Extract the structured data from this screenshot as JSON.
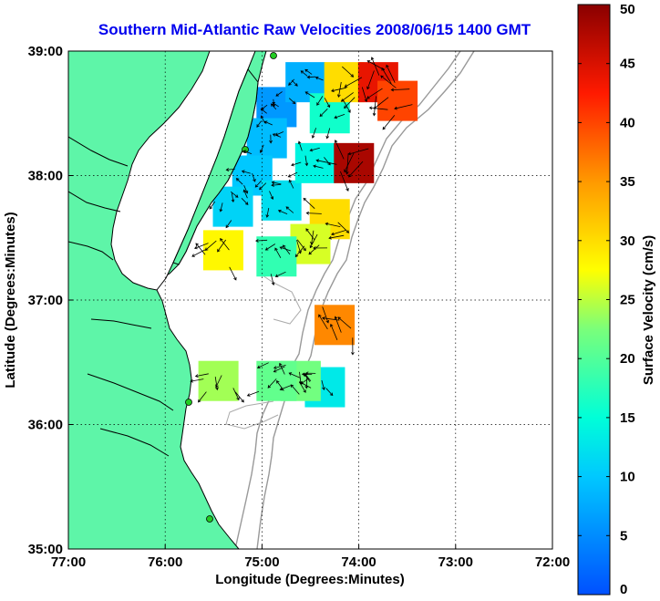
{
  "chart_data": {
    "type": "heatmap",
    "title": "Southern Mid-Atlantic Raw Velocities 2008/06/15 1400 GMT",
    "xlabel": "Longitude (Degrees:Minutes)",
    "ylabel": "Latitude (Degrees:Minutes)",
    "colorbar_label": "Surface Velocity (cm/s)",
    "xlim": [
      -77,
      -72
    ],
    "ylim": [
      35,
      39
    ],
    "x_ticks": [
      {
        "value": -77,
        "label": "77:00"
      },
      {
        "value": -76,
        "label": "76:00"
      },
      {
        "value": -75,
        "label": "75:00"
      },
      {
        "value": -74,
        "label": "74:00"
      },
      {
        "value": -73,
        "label": "73:00"
      },
      {
        "value": -72,
        "label": "72:00"
      }
    ],
    "y_ticks": [
      {
        "value": 35,
        "label": "35:00"
      },
      {
        "value": 36,
        "label": "36:00"
      },
      {
        "value": 37,
        "label": "37:00"
      },
      {
        "value": 38,
        "label": "38:00"
      },
      {
        "value": 39,
        "label": "39:00"
      }
    ],
    "colorbar_ticks": [
      "0",
      "5",
      "10",
      "15",
      "20",
      "25",
      "30",
      "35",
      "40",
      "45",
      "50"
    ],
    "clim": [
      0,
      50
    ],
    "grid": true,
    "land_color": "#5ef5a8",
    "velocity_regions": [
      {
        "lon": -74.85,
        "lat": 38.55,
        "speed": 6
      },
      {
        "lon": -74.55,
        "lat": 38.75,
        "speed": 8
      },
      {
        "lon": -74.95,
        "lat": 38.3,
        "speed": 9
      },
      {
        "lon": -75.1,
        "lat": 38.0,
        "speed": 10
      },
      {
        "lon": -75.3,
        "lat": 37.75,
        "speed": 11
      },
      {
        "lon": -74.8,
        "lat": 37.8,
        "speed": 12
      },
      {
        "lon": -74.45,
        "lat": 38.1,
        "speed": 14
      },
      {
        "lon": -74.3,
        "lat": 38.5,
        "speed": 16
      },
      {
        "lon": -74.15,
        "lat": 38.75,
        "speed": 30
      },
      {
        "lon": -73.8,
        "lat": 38.75,
        "speed": 44
      },
      {
        "lon": -73.6,
        "lat": 38.6,
        "speed": 40
      },
      {
        "lon": -74.05,
        "lat": 38.1,
        "speed": 48
      },
      {
        "lon": -74.3,
        "lat": 37.65,
        "speed": 30
      },
      {
        "lon": -74.5,
        "lat": 37.45,
        "speed": 26
      },
      {
        "lon": -74.85,
        "lat": 37.35,
        "speed": 18
      },
      {
        "lon": -75.4,
        "lat": 37.4,
        "speed": 28
      },
      {
        "lon": -74.25,
        "lat": 36.8,
        "speed": 36
      },
      {
        "lon": -74.35,
        "lat": 36.3,
        "speed": 13
      },
      {
        "lon": -74.6,
        "lat": 36.35,
        "speed": 22
      },
      {
        "lon": -74.85,
        "lat": 36.35,
        "speed": 21
      },
      {
        "lon": -75.45,
        "lat": 36.35,
        "speed": 24
      }
    ]
  }
}
